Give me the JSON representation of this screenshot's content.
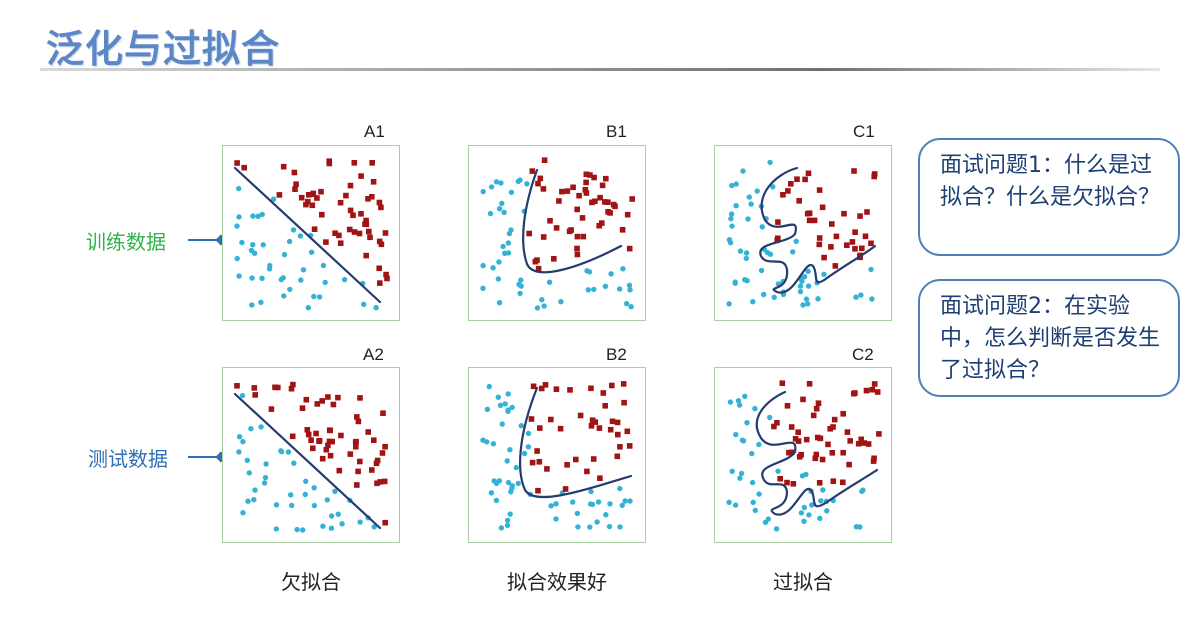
{
  "title": "泛化与过拟合",
  "rows": {
    "train_label": "训练数据",
    "test_label": "测试数据"
  },
  "panels": {
    "a1": "A1",
    "b1": "B1",
    "c1": "C1",
    "a2": "A2",
    "b2": "B2",
    "c2": "C2"
  },
  "captions": {
    "under": "欠拟合",
    "good": "拟合效果好",
    "over": "过拟合"
  },
  "questions": {
    "q1": "面试问题1：什么是过拟合？什么是欠拟合？",
    "q2": "面试问题2：在实验中，怎么判断是否发生了过拟合？"
  },
  "colors": {
    "positive_class": "#a11414",
    "negative_class": "#34b2d6",
    "boundary": "#243c6e",
    "panel_border": "#a7cfa3"
  }
}
